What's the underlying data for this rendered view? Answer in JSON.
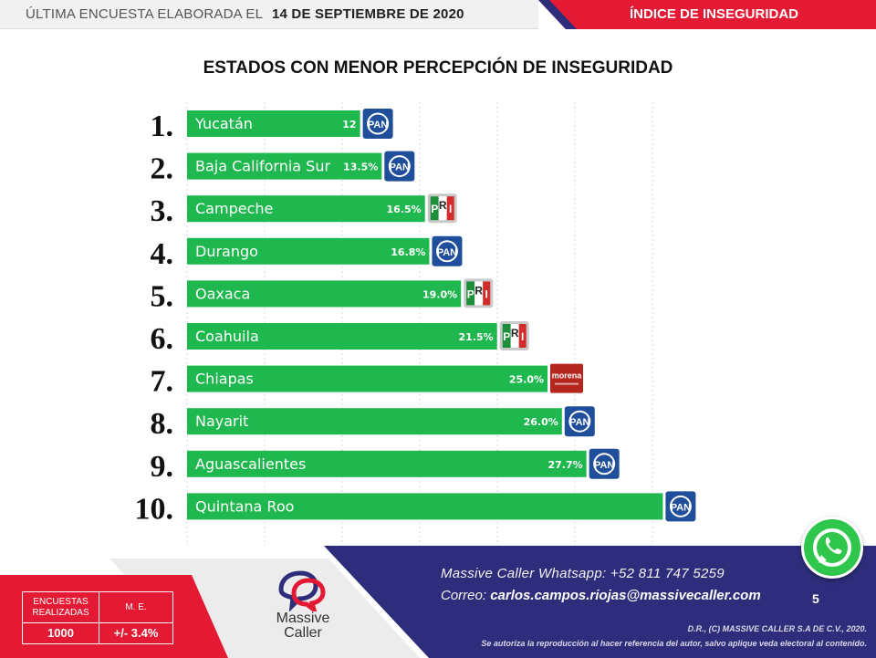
{
  "header": {
    "left_text": "ÚLTIMA ENCUESTA ELABORADA EL",
    "date": "14 DE SEPTIEMBRE DE 2020",
    "right_text": "ÍNDICE DE INSEGURIDAD"
  },
  "colors": {
    "bar": "#1fb84f",
    "accent_red": "#e41a34",
    "navy": "#2e2d7b",
    "pan_blue": "#1f4e9a",
    "morena": "#b5261e"
  },
  "chart_data": {
    "type": "bar",
    "orientation": "horizontal",
    "title": "ESTADOS CON MENOR PERCEPCIÓN DE INSEGURIDAD",
    "xlabel": "",
    "ylabel": "",
    "grid": true,
    "ranks": [
      "1.",
      "2.",
      "3.",
      "4.",
      "5.",
      "6.",
      "7.",
      "8.",
      "9.",
      "10."
    ],
    "categories": [
      "Yucatán",
      "Baja California Sur",
      "Campeche",
      "Durango",
      "Oaxaca",
      "Coahuila",
      "Chiapas",
      "Nayarit",
      "Aguascalientes",
      "Quintana Roo"
    ],
    "values": [
      12,
      13.5,
      16.5,
      16.8,
      19.0,
      21.5,
      25.0,
      26.0,
      27.7,
      33.0
    ],
    "value_labels": [
      "12",
      "13.5%",
      "16.5%",
      "16.8%",
      "19.0%",
      "21.5%",
      "25.0%",
      "26.0%",
      "27.7%",
      ""
    ],
    "party_logos": [
      "PAN",
      "PAN",
      "PRI",
      "PAN",
      "PRI",
      "PRI",
      "MORENA",
      "PAN",
      "PAN",
      "PAN"
    ]
  },
  "logos": {
    "pan_text": "PAN",
    "pri_letters": [
      "P",
      "R",
      "I"
    ],
    "morena_text": "morena"
  },
  "survey": {
    "header_encuestas": "ENCUESTAS REALIZADAS",
    "header_me": "M. E.",
    "encuestas_value": "1000",
    "me_value": "+/- 3.4%"
  },
  "brand": {
    "name": "Massive Caller"
  },
  "contact": {
    "whatsapp": "Massive Caller Whatsapp: +52   811 747 5259",
    "email_label": "Correo:",
    "email": "carlos.campos.riojas@massivecaller.com"
  },
  "page_number": "5",
  "legal": {
    "line1": "D.R., (C) MASSIVE CALLER S.A DE C.V., 2020.",
    "line2": "Se autoriza la reproducción al hacer referencia del autor, salvo aplique veda electoral al contenido."
  },
  "icons": {
    "whatsapp": "whatsapp-icon"
  }
}
